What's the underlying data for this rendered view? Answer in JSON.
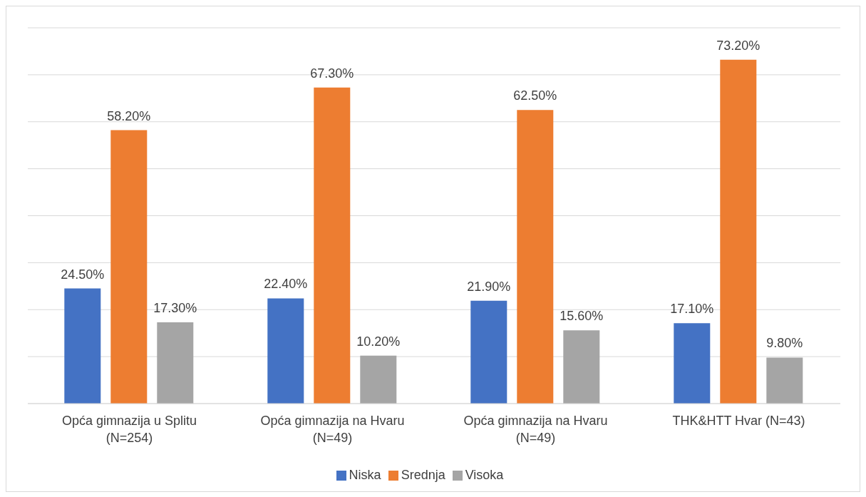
{
  "chart_data": {
    "type": "bar",
    "categories": [
      "Opća gimnazija u Splitu\n(N=254)",
      "Opća gimnazija na Hvaru\n(N=49)",
      "Opća gimnazija na Hvaru\n(N=49)",
      "THK&HTT Hvar (N=43)"
    ],
    "series": [
      {
        "name": "Niska",
        "color": "#4472c4",
        "values": [
          24.5,
          22.4,
          21.9,
          17.1
        ],
        "value_labels": [
          "24.50%",
          "22.40%",
          "21.90%",
          "17.10%"
        ]
      },
      {
        "name": "Srednja",
        "color": "#ed7d31",
        "values": [
          58.2,
          67.3,
          62.5,
          73.2
        ],
        "value_labels": [
          "58.20%",
          "67.30%",
          "62.50%",
          "73.20%"
        ]
      },
      {
        "name": "Visoka",
        "color": "#a5a5a5",
        "values": [
          17.3,
          10.2,
          15.6,
          9.8
        ],
        "value_labels": [
          "17.30%",
          "10.20%",
          "15.60%",
          "9.80%"
        ]
      }
    ],
    "ylim": [
      0,
      80
    ],
    "yticks": [
      {
        "value": 0,
        "label": null
      },
      {
        "value": 10,
        "label": null
      },
      {
        "value": 20,
        "label": null
      },
      {
        "value": 30,
        "label": null
      },
      {
        "value": 40,
        "label": null
      },
      {
        "value": 50,
        "label": null
      },
      {
        "value": 60,
        "label": null
      },
      {
        "value": 70,
        "label": null
      },
      {
        "value": 80,
        "label": null
      }
    ],
    "tick_labels": "x",
    "grid": "y",
    "legend": "bottom"
  }
}
